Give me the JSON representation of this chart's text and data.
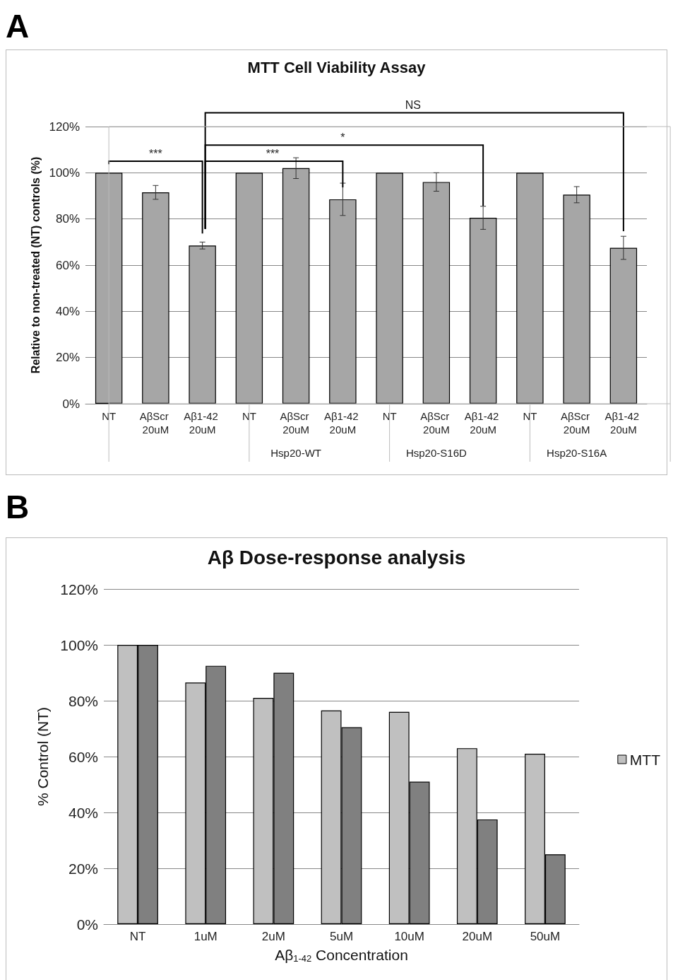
{
  "chart_data": [
    {
      "type": "bar",
      "title": "MTT Cell Viability Assay",
      "ylabel": "Relative to non-treated (NT) controls (%)",
      "categories": [
        "NT",
        "AβScr 20uM",
        "Aβ1-42 20uM",
        "NT",
        "AβScr 20uM",
        "Aβ1-42 20uM",
        "NT",
        "AβScr 20uM",
        "Aβ1-42 20uM",
        "NT",
        "AβScr 20uM",
        "Aβ1-42 20uM"
      ],
      "series": [
        {
          "color": "#a6a6a6",
          "values": [
            100,
            91.5,
            68.5,
            100,
            102,
            88.5,
            100,
            96,
            80.5,
            100,
            90.5,
            67.5
          ],
          "errors": [
            null,
            3,
            1.5,
            null,
            4.5,
            7,
            null,
            4,
            5,
            null,
            3.5,
            5
          ]
        }
      ],
      "ylim": [
        0,
        120
      ],
      "yticks": [
        {
          "value": 0,
          "label": "0%"
        },
        {
          "value": 20,
          "label": "20%"
        },
        {
          "value": 40,
          "label": "40%"
        },
        {
          "value": 60,
          "label": "60%"
        },
        {
          "value": 80,
          "label": "80%"
        },
        {
          "value": 100,
          "label": "100%"
        },
        {
          "value": 120,
          "label": "120%"
        }
      ],
      "grid": "y",
      "legend": false,
      "annotations": [
        "A",
        "***",
        "***",
        "*",
        "NS",
        "Hsp20-WT",
        "Hsp20-S16D",
        "Hsp20-S16A"
      ]
    },
    {
      "type": "bar",
      "title": "Aβ Dose-response analysis",
      "ylabel": "% Control (NT)",
      "xlabel": "Aβ$_{1-42}$ Concentration",
      "categories": [
        "NT",
        "1uM",
        "2uM",
        "5uM",
        "10uM",
        "20uM",
        "50uM"
      ],
      "series": [
        {
          "name": "MTT",
          "color": "#c0c0c0",
          "values": [
            100,
            86.5,
            81,
            76.5,
            76,
            63,
            61
          ]
        },
        {
          "color": "#808080",
          "values": [
            100,
            92.5,
            90,
            70.5,
            51,
            37.5,
            25
          ]
        }
      ],
      "ylim": [
        0,
        120
      ],
      "yticks": [
        {
          "value": 0,
          "label": "0%"
        },
        {
          "value": 20,
          "label": "20%"
        },
        {
          "value": 40,
          "label": "40%"
        },
        {
          "value": 60,
          "label": "60%"
        },
        {
          "value": 80,
          "label": "80%"
        },
        {
          "value": 100,
          "label": "100%"
        },
        {
          "value": 120,
          "label": "120%"
        }
      ],
      "grid": "y",
      "legend": "right",
      "annotations": [
        "B"
      ]
    }
  ]
}
